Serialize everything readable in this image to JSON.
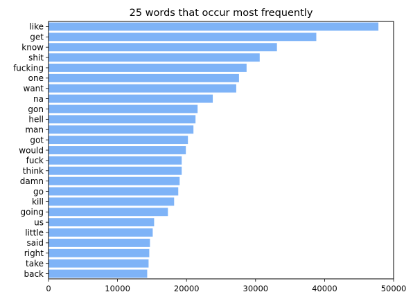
{
  "chart_data": {
    "type": "bar",
    "orientation": "horizontal",
    "title": "25 words that occur most frequently",
    "xlabel": "",
    "ylabel": "",
    "categories": [
      "like",
      "get",
      "know",
      "shit",
      "fucking",
      "one",
      "want",
      "na",
      "gon",
      "hell",
      "man",
      "got",
      "would",
      "fuck",
      "think",
      "damn",
      "go",
      "kill",
      "going",
      "us",
      "little",
      "said",
      "right",
      "take",
      "back"
    ],
    "values": [
      47800,
      38800,
      33100,
      30600,
      28700,
      27600,
      27200,
      23800,
      21600,
      21300,
      21000,
      20200,
      19900,
      19300,
      19300,
      19000,
      18800,
      18200,
      17300,
      15300,
      15100,
      14700,
      14600,
      14500,
      14300
    ],
    "xlim": [
      0,
      50000
    ],
    "xticks": [
      0,
      10000,
      20000,
      30000,
      40000,
      50000
    ],
    "grid": false,
    "bar_color": "#7eb3f7"
  }
}
